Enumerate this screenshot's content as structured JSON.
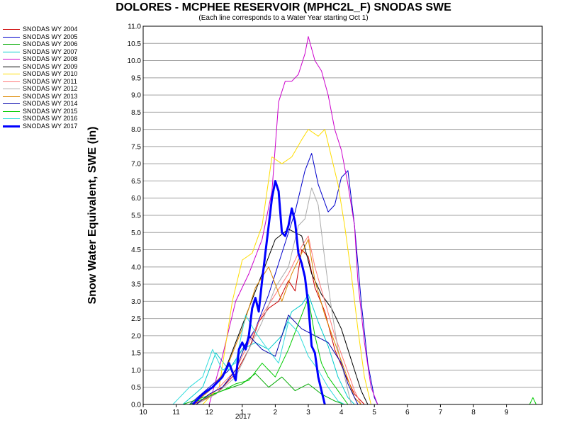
{
  "chart_data": {
    "type": "line",
    "title": "DOLORES - MCPHEE RESERVOIR (MPHC2L_F) SNODAS SWE",
    "subtitle": "(Each line corresponds to a Water Year starting Oct 1)",
    "ylabel": "Snow Water Equivalent, SWE (in)",
    "xlabel": "",
    "ylim": [
      0,
      11
    ],
    "y_ticks": [
      "0.0",
      "0.5",
      "1.0",
      "1.5",
      "2.0",
      "2.5",
      "3.0",
      "3.5",
      "4.0",
      "4.5",
      "5.0",
      "5.5",
      "6.0",
      "6.5",
      "7.0",
      "7.5",
      "8.0",
      "8.5",
      "9.0",
      "9.5",
      "10.0",
      "10.5",
      "11.0"
    ],
    "x_ticks": [
      {
        "label": "10",
        "m": 0
      },
      {
        "label": "11",
        "m": 1
      },
      {
        "label": "12",
        "m": 2
      },
      {
        "label": "1",
        "m": 3
      },
      {
        "label": "2",
        "m": 4
      },
      {
        "label": "3",
        "m": 5
      },
      {
        "label": "4",
        "m": 6
      },
      {
        "label": "5",
        "m": 7
      },
      {
        "label": "6",
        "m": 8
      },
      {
        "label": "7",
        "m": 9
      },
      {
        "label": "8",
        "m": 10
      },
      {
        "label": "9",
        "m": 11
      }
    ],
    "x_year_label": "2017",
    "grid": true,
    "legend_position": "left",
    "series": [
      {
        "name": "SNODAS WY 2004",
        "color": "#cc0000",
        "width": 1,
        "points": [
          [
            1.5,
            0
          ],
          [
            2.2,
            0.3
          ],
          [
            2.8,
            0.9
          ],
          [
            3.2,
            1.6
          ],
          [
            3.5,
            2.4
          ],
          [
            3.8,
            2.8
          ],
          [
            4.1,
            3.0
          ],
          [
            4.4,
            3.6
          ],
          [
            4.6,
            3.3
          ],
          [
            4.8,
            4.5
          ],
          [
            5.0,
            4.3
          ],
          [
            5.2,
            3.4
          ],
          [
            5.5,
            2.7
          ],
          [
            5.8,
            1.6
          ],
          [
            6.1,
            0.9
          ],
          [
            6.4,
            0.3
          ],
          [
            6.7,
            0
          ]
        ]
      },
      {
        "name": "SNODAS WY 2005",
        "color": "#0000cc",
        "width": 1,
        "points": [
          [
            1.4,
            0
          ],
          [
            2.0,
            0.5
          ],
          [
            2.6,
            1.0
          ],
          [
            3.0,
            1.6
          ],
          [
            3.4,
            2.2
          ],
          [
            3.8,
            3.2
          ],
          [
            4.2,
            4.4
          ],
          [
            4.6,
            5.6
          ],
          [
            4.9,
            6.8
          ],
          [
            5.1,
            7.3
          ],
          [
            5.3,
            6.4
          ],
          [
            5.6,
            5.6
          ],
          [
            5.8,
            5.8
          ],
          [
            6.0,
            6.6
          ],
          [
            6.2,
            6.8
          ],
          [
            6.4,
            5.2
          ],
          [
            6.6,
            3.0
          ],
          [
            6.8,
            1.2
          ],
          [
            7.0,
            0.2
          ],
          [
            7.1,
            0
          ]
        ]
      },
      {
        "name": "SNODAS WY 2006",
        "color": "#00aa00",
        "width": 1,
        "points": [
          [
            1.2,
            0
          ],
          [
            1.8,
            0.2
          ],
          [
            2.4,
            0.4
          ],
          [
            3.0,
            0.6
          ],
          [
            3.4,
            0.9
          ],
          [
            3.8,
            0.5
          ],
          [
            4.2,
            0.8
          ],
          [
            4.6,
            0.4
          ],
          [
            5.0,
            0.6
          ],
          [
            5.4,
            0.3
          ],
          [
            5.8,
            0.1
          ],
          [
            6.1,
            0
          ]
        ]
      },
      {
        "name": "SNODAS WY 2007",
        "color": "#00cccc",
        "width": 1,
        "points": [
          [
            1.2,
            0
          ],
          [
            1.8,
            0.5
          ],
          [
            2.2,
            1.5
          ],
          [
            2.6,
            1.0
          ],
          [
            3.0,
            1.6
          ],
          [
            3.4,
            1.8
          ],
          [
            3.8,
            1.6
          ],
          [
            4.2,
            2.0
          ],
          [
            4.5,
            2.7
          ],
          [
            4.8,
            2.9
          ],
          [
            5.0,
            3.2
          ],
          [
            5.3,
            2.4
          ],
          [
            5.6,
            1.7
          ],
          [
            5.9,
            0.8
          ],
          [
            6.2,
            0.2
          ],
          [
            6.4,
            0
          ]
        ]
      },
      {
        "name": "SNODAS WY 2008",
        "color": "#cc00cc",
        "width": 1,
        "points": [
          [
            2.0,
            0
          ],
          [
            2.4,
            1.4
          ],
          [
            2.8,
            3.0
          ],
          [
            3.2,
            3.8
          ],
          [
            3.6,
            4.8
          ],
          [
            3.9,
            6.2
          ],
          [
            4.1,
            8.8
          ],
          [
            4.3,
            9.4
          ],
          [
            4.5,
            9.4
          ],
          [
            4.7,
            9.6
          ],
          [
            4.9,
            10.2
          ],
          [
            5.0,
            10.7
          ],
          [
            5.2,
            10.0
          ],
          [
            5.4,
            9.7
          ],
          [
            5.6,
            9.0
          ],
          [
            5.8,
            8.0
          ],
          [
            6.0,
            7.4
          ],
          [
            6.2,
            6.4
          ],
          [
            6.4,
            5.2
          ],
          [
            6.5,
            3.6
          ],
          [
            6.7,
            1.8
          ],
          [
            6.9,
            0.5
          ],
          [
            7.1,
            0
          ]
        ]
      },
      {
        "name": "SNODAS WY 2009",
        "color": "#000000",
        "width": 1,
        "points": [
          [
            1.5,
            0
          ],
          [
            2.0,
            0.4
          ],
          [
            2.4,
            0.8
          ],
          [
            2.8,
            1.8
          ],
          [
            3.2,
            2.8
          ],
          [
            3.6,
            3.8
          ],
          [
            4.0,
            4.8
          ],
          [
            4.4,
            5.1
          ],
          [
            4.8,
            4.9
          ],
          [
            5.1,
            3.8
          ],
          [
            5.4,
            3.2
          ],
          [
            5.7,
            2.8
          ],
          [
            6.0,
            2.2
          ],
          [
            6.2,
            1.6
          ],
          [
            6.4,
            1.0
          ],
          [
            6.6,
            0.4
          ],
          [
            6.8,
            0
          ]
        ]
      },
      {
        "name": "SNODAS WY 2010",
        "color": "#ffdd00",
        "width": 1,
        "points": [
          [
            1.8,
            0
          ],
          [
            2.3,
            0.5
          ],
          [
            2.7,
            3.0
          ],
          [
            3.0,
            4.2
          ],
          [
            3.3,
            4.4
          ],
          [
            3.6,
            5.2
          ],
          [
            3.9,
            7.2
          ],
          [
            4.2,
            7.0
          ],
          [
            4.5,
            7.2
          ],
          [
            4.8,
            7.7
          ],
          [
            5.0,
            8.0
          ],
          [
            5.3,
            7.8
          ],
          [
            5.5,
            8.0
          ],
          [
            5.7,
            7.2
          ],
          [
            5.9,
            6.4
          ],
          [
            6.1,
            5.2
          ],
          [
            6.3,
            3.8
          ],
          [
            6.5,
            2.2
          ],
          [
            6.7,
            0.8
          ],
          [
            6.9,
            0
          ]
        ]
      },
      {
        "name": "SNODAS WY 2011",
        "color": "#ff7777",
        "width": 1,
        "points": [
          [
            1.6,
            0
          ],
          [
            2.2,
            0.4
          ],
          [
            2.8,
            1.0
          ],
          [
            3.2,
            1.8
          ],
          [
            3.6,
            2.6
          ],
          [
            4.0,
            3.2
          ],
          [
            4.4,
            3.8
          ],
          [
            4.8,
            4.6
          ],
          [
            5.0,
            4.9
          ],
          [
            5.2,
            4.0
          ],
          [
            5.5,
            3.0
          ],
          [
            5.8,
            2.0
          ],
          [
            6.1,
            1.2
          ],
          [
            6.4,
            0.4
          ],
          [
            6.6,
            0
          ]
        ]
      },
      {
        "name": "SNODAS WY 2012",
        "color": "#aaaaaa",
        "width": 1,
        "points": [
          [
            1.6,
            0
          ],
          [
            2.2,
            0.3
          ],
          [
            2.8,
            0.8
          ],
          [
            3.2,
            1.6
          ],
          [
            3.6,
            2.4
          ],
          [
            4.0,
            3.4
          ],
          [
            4.4,
            4.0
          ],
          [
            4.7,
            5.2
          ],
          [
            4.9,
            5.4
          ],
          [
            5.1,
            6.3
          ],
          [
            5.3,
            5.8
          ],
          [
            5.5,
            4.2
          ],
          [
            5.7,
            2.8
          ],
          [
            5.9,
            1.6
          ],
          [
            6.1,
            0.8
          ],
          [
            6.3,
            0
          ]
        ]
      },
      {
        "name": "SNODAS WY 2013",
        "color": "#dd8800",
        "width": 1,
        "points": [
          [
            1.5,
            0
          ],
          [
            2.0,
            0.4
          ],
          [
            2.5,
            1.0
          ],
          [
            3.0,
            2.2
          ],
          [
            3.4,
            3.4
          ],
          [
            3.8,
            4.0
          ],
          [
            4.2,
            3.0
          ],
          [
            4.5,
            3.8
          ],
          [
            4.8,
            4.4
          ],
          [
            5.0,
            4.8
          ],
          [
            5.2,
            3.6
          ],
          [
            5.5,
            2.6
          ],
          [
            5.8,
            1.8
          ],
          [
            6.1,
            1.0
          ],
          [
            6.4,
            0.2
          ],
          [
            6.6,
            0
          ]
        ]
      },
      {
        "name": "SNODAS WY 2014",
        "color": "#0000aa",
        "width": 1,
        "points": [
          [
            1.6,
            0
          ],
          [
            2.0,
            0.3
          ],
          [
            2.4,
            0.5
          ],
          [
            2.8,
            1.0
          ],
          [
            3.2,
            2.0
          ],
          [
            3.6,
            1.6
          ],
          [
            4.0,
            1.4
          ],
          [
            4.4,
            2.6
          ],
          [
            4.8,
            2.2
          ],
          [
            5.2,
            2.0
          ],
          [
            5.6,
            1.8
          ],
          [
            6.0,
            1.2
          ],
          [
            6.2,
            0.6
          ],
          [
            6.5,
            0
          ]
        ]
      },
      {
        "name": "SNODAS WY 2015",
        "color": "#00cc00",
        "width": 1,
        "points": [
          [
            1.4,
            0
          ],
          [
            1.9,
            0.2
          ],
          [
            2.4,
            0.4
          ],
          [
            2.8,
            0.6
          ],
          [
            3.2,
            0.7
          ],
          [
            3.6,
            1.2
          ],
          [
            4.0,
            0.8
          ],
          [
            4.4,
            1.6
          ],
          [
            4.8,
            2.6
          ],
          [
            5.0,
            3.1
          ],
          [
            5.2,
            2.0
          ],
          [
            5.4,
            1.2
          ],
          [
            5.6,
            0.8
          ],
          [
            5.9,
            0.4
          ],
          [
            6.2,
            0
          ],
          [
            11.7,
            0
          ],
          [
            11.8,
            0.2
          ],
          [
            11.9,
            0
          ]
        ]
      },
      {
        "name": "SNODAS WY 2016",
        "color": "#33dddd",
        "width": 1,
        "points": [
          [
            0.9,
            0
          ],
          [
            1.4,
            0.5
          ],
          [
            1.8,
            0.8
          ],
          [
            2.1,
            1.6
          ],
          [
            2.4,
            1.0
          ],
          [
            2.8,
            1.2
          ],
          [
            3.1,
            2.6
          ],
          [
            3.4,
            2.1
          ],
          [
            3.7,
            1.7
          ],
          [
            4.1,
            1.2
          ],
          [
            4.4,
            2.4
          ],
          [
            4.7,
            2.1
          ],
          [
            5.0,
            1.4
          ],
          [
            5.3,
            1.0
          ],
          [
            5.6,
            0.5
          ],
          [
            5.9,
            0.1
          ],
          [
            6.1,
            0
          ]
        ]
      },
      {
        "name": "SNODAS WY 2017",
        "color": "#0000ff",
        "width": 3,
        "points": [
          [
            1.5,
            0
          ],
          [
            1.8,
            0.3
          ],
          [
            2.1,
            0.5
          ],
          [
            2.4,
            0.8
          ],
          [
            2.6,
            1.2
          ],
          [
            2.8,
            0.7
          ],
          [
            2.9,
            1.6
          ],
          [
            3.0,
            1.8
          ],
          [
            3.1,
            1.6
          ],
          [
            3.2,
            2.0
          ],
          [
            3.3,
            2.8
          ],
          [
            3.4,
            3.1
          ],
          [
            3.5,
            2.7
          ],
          [
            3.6,
            3.6
          ],
          [
            3.7,
            4.4
          ],
          [
            3.8,
            5.2
          ],
          [
            3.9,
            6.0
          ],
          [
            4.0,
            6.5
          ],
          [
            4.1,
            6.2
          ],
          [
            4.2,
            5.0
          ],
          [
            4.3,
            4.9
          ],
          [
            4.4,
            5.2
          ],
          [
            4.5,
            5.7
          ],
          [
            4.6,
            5.3
          ],
          [
            4.7,
            4.4
          ],
          [
            4.8,
            4.1
          ],
          [
            4.9,
            3.7
          ],
          [
            5.0,
            2.9
          ],
          [
            5.1,
            1.7
          ],
          [
            5.2,
            1.5
          ],
          [
            5.3,
            0.8
          ],
          [
            5.4,
            0.4
          ],
          [
            5.5,
            0
          ]
        ]
      }
    ]
  }
}
